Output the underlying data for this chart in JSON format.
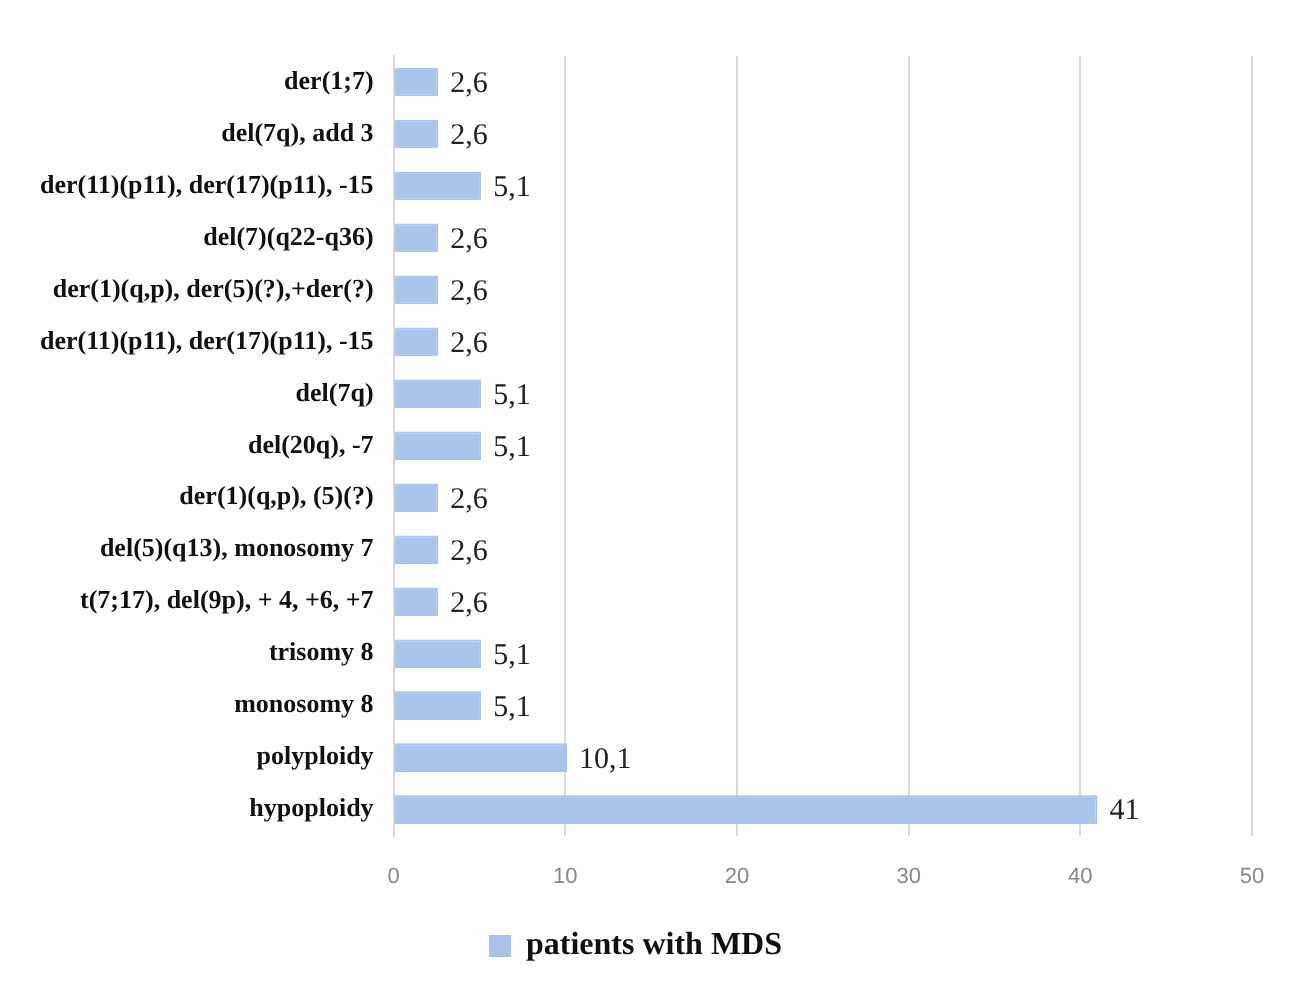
{
  "chart_data": {
    "type": "bar",
    "orientation": "horizontal",
    "categories": [
      "der(1;7)",
      "del(7q), add 3",
      "der(11)(p11), der(17)(p11), -15",
      "del(7)(q22-q36)",
      "der(1)(q,p), der(5)(?),+der(?)",
      "der(11)(p11), der(17)(p11), -15",
      "del(7q)",
      "del(20q), -7",
      "der(1)(q,p), (5)(?)",
      "del(5)(q13), monosomy 7",
      "t(7;17), del(9p), + 4, +6, +7",
      "trisomy 8",
      "monosomy 8",
      "polyploidy",
      "hypoploidy"
    ],
    "series": [
      {
        "name": "patients with MDS",
        "color": "#a9c4e8",
        "values": [
          2.6,
          2.6,
          5.1,
          2.6,
          2.6,
          2.6,
          5.1,
          5.1,
          2.6,
          2.6,
          2.6,
          5.1,
          5.1,
          10.1,
          41
        ],
        "value_labels": [
          "2,6",
          "2,6",
          "5,1",
          "2,6",
          "2,6",
          "2,6",
          "5,1",
          "5,1",
          "2,6",
          "2,6",
          "2,6",
          "5,1",
          "5,1",
          "10,1",
          "41"
        ]
      }
    ],
    "xlim": [
      0,
      50
    ],
    "xticks": [
      0,
      10,
      20,
      30,
      40,
      50
    ],
    "grid": "x",
    "legend": "bottom"
  }
}
